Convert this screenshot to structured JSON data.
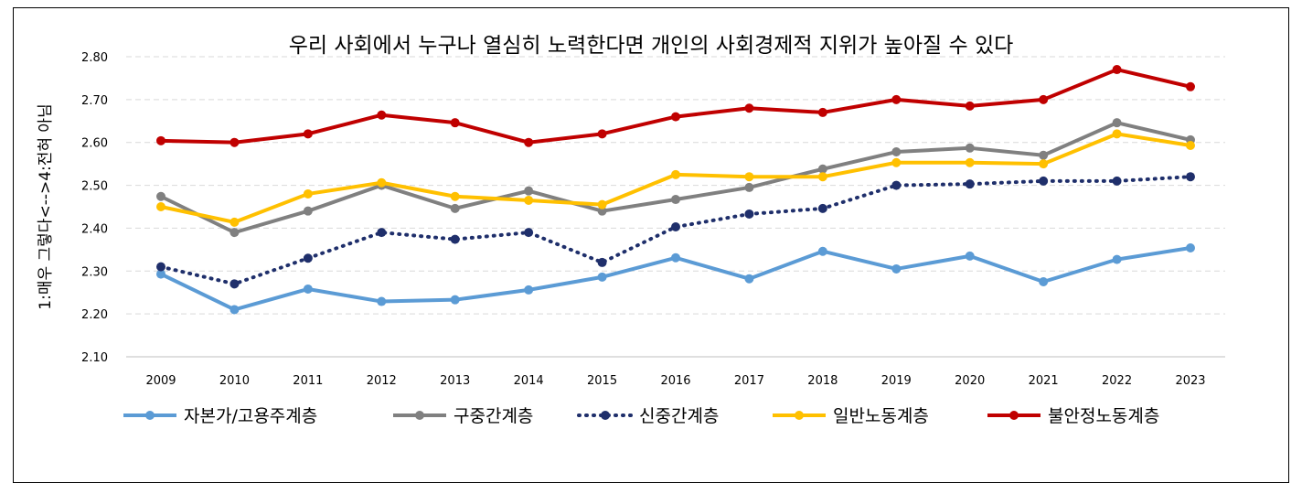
{
  "chart_data": {
    "type": "line",
    "title": "우리 사회에서 누구나 열심히 노력한다면 개인의 사회경제적 지위가 높아질 수 있다",
    "xlabel": "",
    "ylabel": "1:매우 그렇다<-->4:전혀 아님",
    "ylim": [
      2.1,
      2.8
    ],
    "yticks": [
      "2.10",
      "2.20",
      "2.30",
      "2.40",
      "2.50",
      "2.60",
      "2.70",
      "2.80"
    ],
    "grid": true,
    "legend": "bottom",
    "categories": [
      "2009",
      "2010",
      "2011",
      "2012",
      "2013",
      "2014",
      "2015",
      "2016",
      "2017",
      "2018",
      "2019",
      "2020",
      "2021",
      "2022",
      "2023"
    ],
    "series": [
      {
        "name": "자본가/고용주계층",
        "color": "#5B9BD5",
        "style": "solid",
        "values": [
          2.293,
          2.21,
          2.258,
          2.229,
          2.233,
          2.256,
          2.286,
          2.331,
          2.282,
          2.346,
          2.305,
          2.335,
          2.275,
          2.327,
          2.354
        ]
      },
      {
        "name": "구중간계층",
        "color": "#808080",
        "style": "solid",
        "values": [
          2.474,
          2.39,
          2.44,
          2.5,
          2.446,
          2.487,
          2.44,
          2.467,
          2.495,
          2.538,
          2.578,
          2.587,
          2.57,
          2.646,
          2.606
        ]
      },
      {
        "name": "신중간계층",
        "color": "#1F2F6B",
        "style": "dotted",
        "values": [
          2.31,
          2.27,
          2.33,
          2.39,
          2.374,
          2.39,
          2.32,
          2.403,
          2.433,
          2.446,
          2.5,
          2.503,
          2.51,
          2.51,
          2.52
        ]
      },
      {
        "name": "일반노동계층",
        "color": "#FFC000",
        "style": "solid",
        "values": [
          2.45,
          2.414,
          2.48,
          2.506,
          2.474,
          2.465,
          2.455,
          2.525,
          2.52,
          2.52,
          2.553,
          2.553,
          2.55,
          2.62,
          2.593
        ]
      },
      {
        "name": "불안정노동계층",
        "color": "#C00000",
        "style": "solid",
        "values": [
          2.604,
          2.6,
          2.62,
          2.664,
          2.646,
          2.6,
          2.62,
          2.66,
          2.68,
          2.67,
          2.7,
          2.685,
          2.7,
          2.77,
          2.73
        ]
      }
    ]
  }
}
